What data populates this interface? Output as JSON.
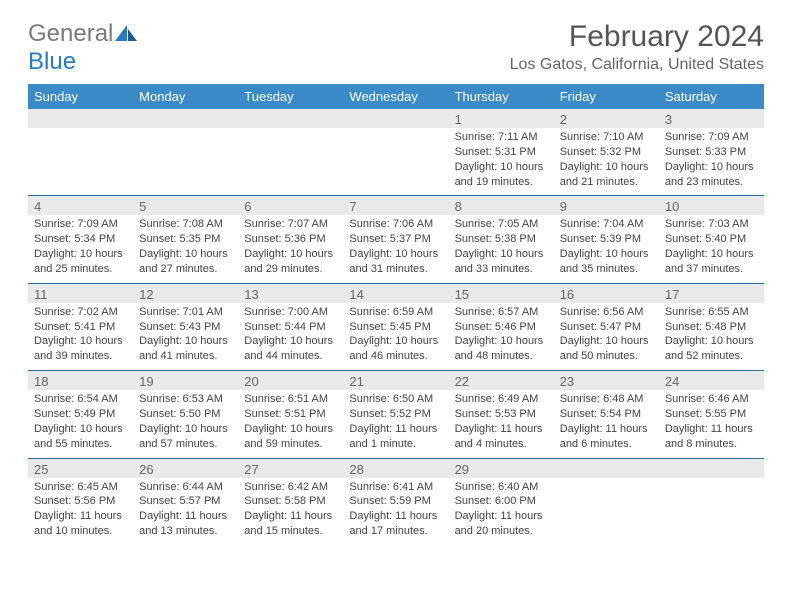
{
  "logo": {
    "text1": "General",
    "text2": "Blue"
  },
  "title": "February 2024",
  "location": "Los Gatos, California, United States",
  "colors": {
    "header_bg": "#3b8bc9",
    "header_text": "#ffffff",
    "week_rule": "#2a6ea6",
    "daynum_bg": "#e9e9e9",
    "logo_gray": "#7a7a7a",
    "logo_blue": "#2a7abf"
  },
  "day_headers": [
    "Sunday",
    "Monday",
    "Tuesday",
    "Wednesday",
    "Thursday",
    "Friday",
    "Saturday"
  ],
  "weeks": [
    [
      null,
      null,
      null,
      null,
      {
        "n": "1",
        "sr": "Sunrise: 7:11 AM",
        "ss": "Sunset: 5:31 PM",
        "d1": "Daylight: 10 hours",
        "d2": "and 19 minutes."
      },
      {
        "n": "2",
        "sr": "Sunrise: 7:10 AM",
        "ss": "Sunset: 5:32 PM",
        "d1": "Daylight: 10 hours",
        "d2": "and 21 minutes."
      },
      {
        "n": "3",
        "sr": "Sunrise: 7:09 AM",
        "ss": "Sunset: 5:33 PM",
        "d1": "Daylight: 10 hours",
        "d2": "and 23 minutes."
      }
    ],
    [
      {
        "n": "4",
        "sr": "Sunrise: 7:09 AM",
        "ss": "Sunset: 5:34 PM",
        "d1": "Daylight: 10 hours",
        "d2": "and 25 minutes."
      },
      {
        "n": "5",
        "sr": "Sunrise: 7:08 AM",
        "ss": "Sunset: 5:35 PM",
        "d1": "Daylight: 10 hours",
        "d2": "and 27 minutes."
      },
      {
        "n": "6",
        "sr": "Sunrise: 7:07 AM",
        "ss": "Sunset: 5:36 PM",
        "d1": "Daylight: 10 hours",
        "d2": "and 29 minutes."
      },
      {
        "n": "7",
        "sr": "Sunrise: 7:06 AM",
        "ss": "Sunset: 5:37 PM",
        "d1": "Daylight: 10 hours",
        "d2": "and 31 minutes."
      },
      {
        "n": "8",
        "sr": "Sunrise: 7:05 AM",
        "ss": "Sunset: 5:38 PM",
        "d1": "Daylight: 10 hours",
        "d2": "and 33 minutes."
      },
      {
        "n": "9",
        "sr": "Sunrise: 7:04 AM",
        "ss": "Sunset: 5:39 PM",
        "d1": "Daylight: 10 hours",
        "d2": "and 35 minutes."
      },
      {
        "n": "10",
        "sr": "Sunrise: 7:03 AM",
        "ss": "Sunset: 5:40 PM",
        "d1": "Daylight: 10 hours",
        "d2": "and 37 minutes."
      }
    ],
    [
      {
        "n": "11",
        "sr": "Sunrise: 7:02 AM",
        "ss": "Sunset: 5:41 PM",
        "d1": "Daylight: 10 hours",
        "d2": "and 39 minutes."
      },
      {
        "n": "12",
        "sr": "Sunrise: 7:01 AM",
        "ss": "Sunset: 5:43 PM",
        "d1": "Daylight: 10 hours",
        "d2": "and 41 minutes."
      },
      {
        "n": "13",
        "sr": "Sunrise: 7:00 AM",
        "ss": "Sunset: 5:44 PM",
        "d1": "Daylight: 10 hours",
        "d2": "and 44 minutes."
      },
      {
        "n": "14",
        "sr": "Sunrise: 6:59 AM",
        "ss": "Sunset: 5:45 PM",
        "d1": "Daylight: 10 hours",
        "d2": "and 46 minutes."
      },
      {
        "n": "15",
        "sr": "Sunrise: 6:57 AM",
        "ss": "Sunset: 5:46 PM",
        "d1": "Daylight: 10 hours",
        "d2": "and 48 minutes."
      },
      {
        "n": "16",
        "sr": "Sunrise: 6:56 AM",
        "ss": "Sunset: 5:47 PM",
        "d1": "Daylight: 10 hours",
        "d2": "and 50 minutes."
      },
      {
        "n": "17",
        "sr": "Sunrise: 6:55 AM",
        "ss": "Sunset: 5:48 PM",
        "d1": "Daylight: 10 hours",
        "d2": "and 52 minutes."
      }
    ],
    [
      {
        "n": "18",
        "sr": "Sunrise: 6:54 AM",
        "ss": "Sunset: 5:49 PM",
        "d1": "Daylight: 10 hours",
        "d2": "and 55 minutes."
      },
      {
        "n": "19",
        "sr": "Sunrise: 6:53 AM",
        "ss": "Sunset: 5:50 PM",
        "d1": "Daylight: 10 hours",
        "d2": "and 57 minutes."
      },
      {
        "n": "20",
        "sr": "Sunrise: 6:51 AM",
        "ss": "Sunset: 5:51 PM",
        "d1": "Daylight: 10 hours",
        "d2": "and 59 minutes."
      },
      {
        "n": "21",
        "sr": "Sunrise: 6:50 AM",
        "ss": "Sunset: 5:52 PM",
        "d1": "Daylight: 11 hours",
        "d2": "and 1 minute."
      },
      {
        "n": "22",
        "sr": "Sunrise: 6:49 AM",
        "ss": "Sunset: 5:53 PM",
        "d1": "Daylight: 11 hours",
        "d2": "and 4 minutes."
      },
      {
        "n": "23",
        "sr": "Sunrise: 6:48 AM",
        "ss": "Sunset: 5:54 PM",
        "d1": "Daylight: 11 hours",
        "d2": "and 6 minutes."
      },
      {
        "n": "24",
        "sr": "Sunrise: 6:46 AM",
        "ss": "Sunset: 5:55 PM",
        "d1": "Daylight: 11 hours",
        "d2": "and 8 minutes."
      }
    ],
    [
      {
        "n": "25",
        "sr": "Sunrise: 6:45 AM",
        "ss": "Sunset: 5:56 PM",
        "d1": "Daylight: 11 hours",
        "d2": "and 10 minutes."
      },
      {
        "n": "26",
        "sr": "Sunrise: 6:44 AM",
        "ss": "Sunset: 5:57 PM",
        "d1": "Daylight: 11 hours",
        "d2": "and 13 minutes."
      },
      {
        "n": "27",
        "sr": "Sunrise: 6:42 AM",
        "ss": "Sunset: 5:58 PM",
        "d1": "Daylight: 11 hours",
        "d2": "and 15 minutes."
      },
      {
        "n": "28",
        "sr": "Sunrise: 6:41 AM",
        "ss": "Sunset: 5:59 PM",
        "d1": "Daylight: 11 hours",
        "d2": "and 17 minutes."
      },
      {
        "n": "29",
        "sr": "Sunrise: 6:40 AM",
        "ss": "Sunset: 6:00 PM",
        "d1": "Daylight: 11 hours",
        "d2": "and 20 minutes."
      },
      null,
      null
    ]
  ]
}
